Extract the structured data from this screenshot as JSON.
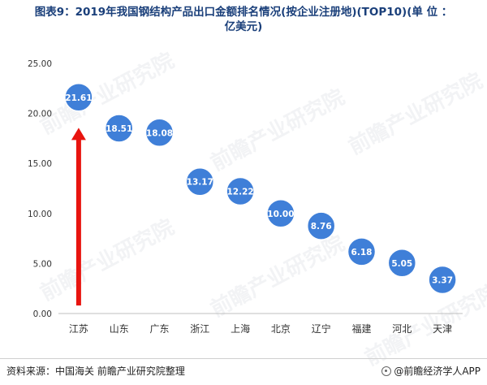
{
  "title": {
    "line1": "图表9：2019年我国钢结构产品出口金额排名情况(按企业注册地)(TOP10)(单 位 ：",
    "line2": "亿美元)"
  },
  "watermark": "前瞻产业研究院",
  "footer": {
    "source": "资料来源：中国海关 前瞻产业研究院整理",
    "brand": "@前瞻经济学人APP"
  },
  "colors": {
    "bubble": "#3f7fd8",
    "arrow": "#e8140f",
    "axis_text": "#333333"
  },
  "chart_data": {
    "type": "scatter",
    "categories": [
      "江苏",
      "山东",
      "广东",
      "浙江",
      "上海",
      "北京",
      "辽宁",
      "福建",
      "河北",
      "天津"
    ],
    "values": [
      21.61,
      18.51,
      18.08,
      13.17,
      12.22,
      10.0,
      8.76,
      6.18,
      5.05,
      3.37
    ],
    "value_labels": [
      "21.61",
      "18.51",
      "18.08",
      "13.17",
      "12.22",
      "10.00",
      "8.76",
      "6.18",
      "5.05",
      "3.37"
    ],
    "ylim": [
      0,
      25
    ],
    "yticks": [
      "0.00",
      "5.00",
      "10.00",
      "15.00",
      "20.00",
      "25.00"
    ],
    "grid": false,
    "annotation": "red upward arrow near first category"
  }
}
